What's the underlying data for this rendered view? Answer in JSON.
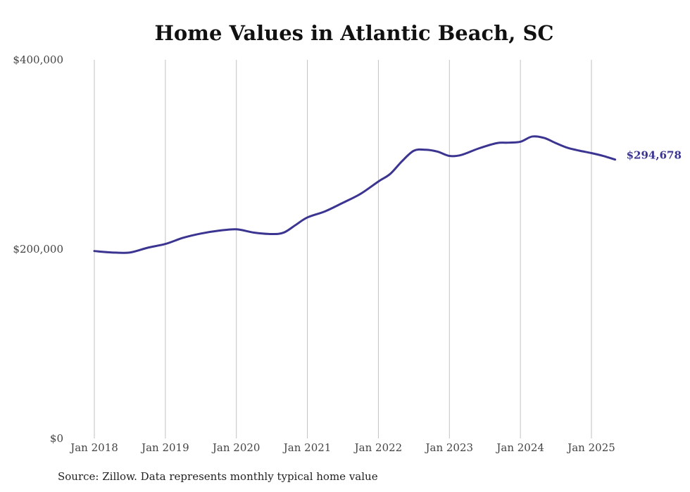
{
  "chart_data": {
    "type": "line",
    "title": "Home Values in Atlantic Beach, SC",
    "source": "Source: Zillow. Data represents monthly typical home value",
    "xlabel": "",
    "ylabel": "",
    "ylim": [
      0,
      400000
    ],
    "y_ticks": [
      {
        "value": 0,
        "label": "$0"
      },
      {
        "value": 200000,
        "label": "$200,000"
      },
      {
        "value": 400000,
        "label": "$400,000"
      }
    ],
    "x_ticks": [
      {
        "value": 2018,
        "label": "Jan 2018"
      },
      {
        "value": 2019,
        "label": "Jan 2019"
      },
      {
        "value": 2020,
        "label": "Jan 2020"
      },
      {
        "value": 2021,
        "label": "Jan 2021"
      },
      {
        "value": 2022,
        "label": "Jan 2022"
      },
      {
        "value": 2023,
        "label": "Jan 2023"
      },
      {
        "value": 2024,
        "label": "Jan 2024"
      },
      {
        "value": 2025,
        "label": "Jan 2025"
      }
    ],
    "grid": "vertical",
    "line_color": "#3b3591",
    "end_label": "$294,678",
    "series": [
      {
        "x": [
          "2018-01",
          "2018-04",
          "2018-07",
          "2018-10",
          "2019-01",
          "2019-04",
          "2019-07",
          "2019-10",
          "2020-01",
          "2020-04",
          "2020-07",
          "2020-09",
          "2020-11",
          "2021-01",
          "2021-04",
          "2021-07",
          "2021-10",
          "2022-01",
          "2022-03",
          "2022-05",
          "2022-07",
          "2022-09",
          "2022-11",
          "2023-01",
          "2023-03",
          "2023-06",
          "2023-09",
          "2023-11",
          "2024-01",
          "2024-03",
          "2024-05",
          "2024-07",
          "2024-09",
          "2024-11",
          "2025-01",
          "2025-03",
          "2025-05"
        ],
        "values": [
          198000,
          196500,
          196500,
          201500,
          205500,
          212000,
          216500,
          219500,
          221000,
          217500,
          216000,
          217500,
          225500,
          233500,
          240000,
          249000,
          258500,
          271500,
          279500,
          293000,
          304000,
          305000,
          303000,
          298500,
          299500,
          306500,
          312000,
          312500,
          313500,
          319000,
          317500,
          312000,
          307000,
          304000,
          301500,
          298500,
          294678
        ]
      }
    ]
  }
}
